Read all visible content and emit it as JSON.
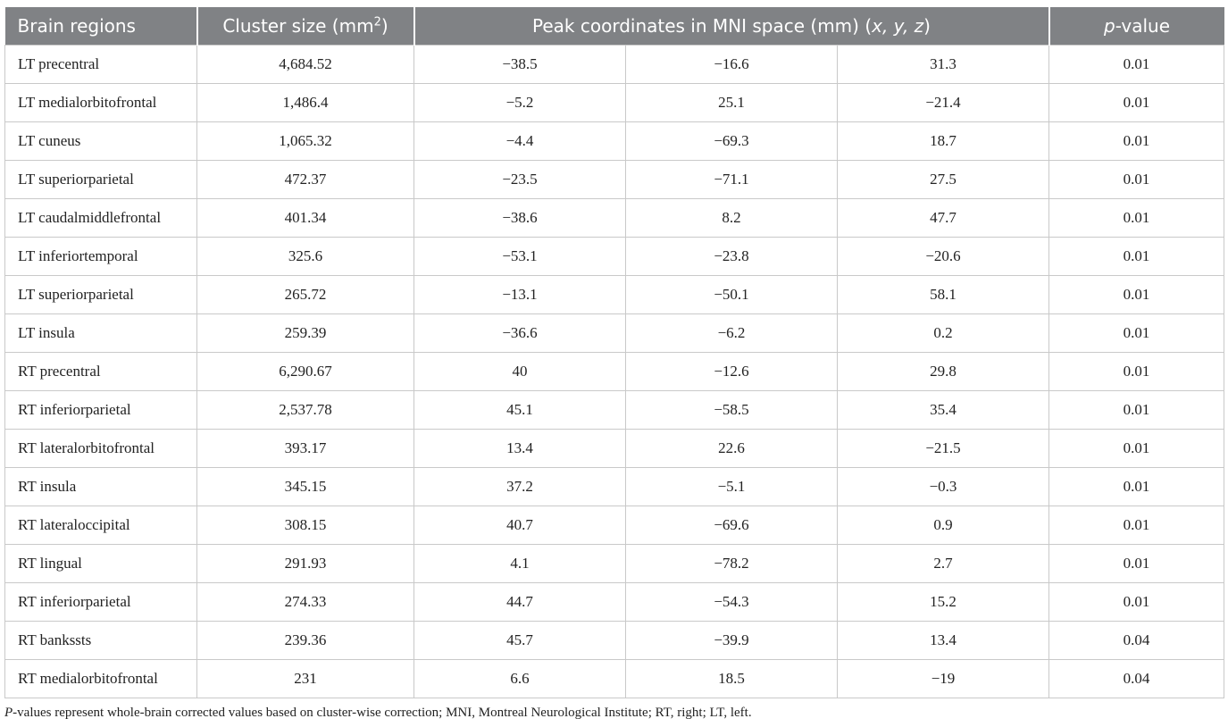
{
  "table": {
    "header": [
      [
        "Brain regions"
      ],
      [
        "Cluster size (mm",
        "2",
        ")"
      ],
      [
        "Peak coordinates in MNI space (mm) (",
        "x, y, z",
        ")"
      ],
      [
        "p",
        "-value"
      ]
    ],
    "rows": [
      [
        "LT precentral",
        "4,684.52",
        "−38.5",
        "−16.6",
        "31.3",
        "0.01"
      ],
      [
        "LT medialorbitofrontal",
        "1,486.4",
        "−5.2",
        "25.1",
        "−21.4",
        "0.01"
      ],
      [
        "LT cuneus",
        "1,065.32",
        "−4.4",
        "−69.3",
        "18.7",
        "0.01"
      ],
      [
        "LT superiorparietal",
        "472.37",
        "−23.5",
        "−71.1",
        "27.5",
        "0.01"
      ],
      [
        "LT caudalmiddlefrontal",
        "401.34",
        "−38.6",
        "8.2",
        "47.7",
        "0.01"
      ],
      [
        "LT inferiortemporal",
        "325.6",
        "−53.1",
        "−23.8",
        "−20.6",
        "0.01"
      ],
      [
        "LT superiorparietal",
        "265.72",
        "−13.1",
        "−50.1",
        "58.1",
        "0.01"
      ],
      [
        "LT insula",
        "259.39",
        "−36.6",
        "−6.2",
        "0.2",
        "0.01"
      ],
      [
        "RT precentral",
        "6,290.67",
        "40",
        "−12.6",
        "29.8",
        "0.01"
      ],
      [
        "RT inferiorparietal",
        "2,537.78",
        "45.1",
        "−58.5",
        "35.4",
        "0.01"
      ],
      [
        "RT lateralorbitofrontal",
        "393.17",
        "13.4",
        "22.6",
        "−21.5",
        "0.01"
      ],
      [
        "RT insula",
        "345.15",
        "37.2",
        "−5.1",
        "−0.3",
        "0.01"
      ],
      [
        "RT lateraloccipital",
        "308.15",
        "40.7",
        "−69.6",
        "0.9",
        "0.01"
      ],
      [
        "RT lingual",
        "291.93",
        "4.1",
        "−78.2",
        "2.7",
        "0.01"
      ],
      [
        "RT inferiorparietal",
        "274.33",
        "44.7",
        "−54.3",
        "15.2",
        "0.01"
      ],
      [
        "RT bankssts",
        "239.36",
        "45.7",
        "−39.9",
        "13.4",
        "0.04"
      ],
      [
        "RT medialorbitofrontal",
        "231",
        "6.6",
        "18.5",
        "−19",
        "0.04"
      ]
    ]
  },
  "footnote": [
    "P",
    "-values represent whole-brain corrected values based on cluster-wise correction; MNI, Montreal Neurological Institute; RT, right; LT, left."
  ]
}
